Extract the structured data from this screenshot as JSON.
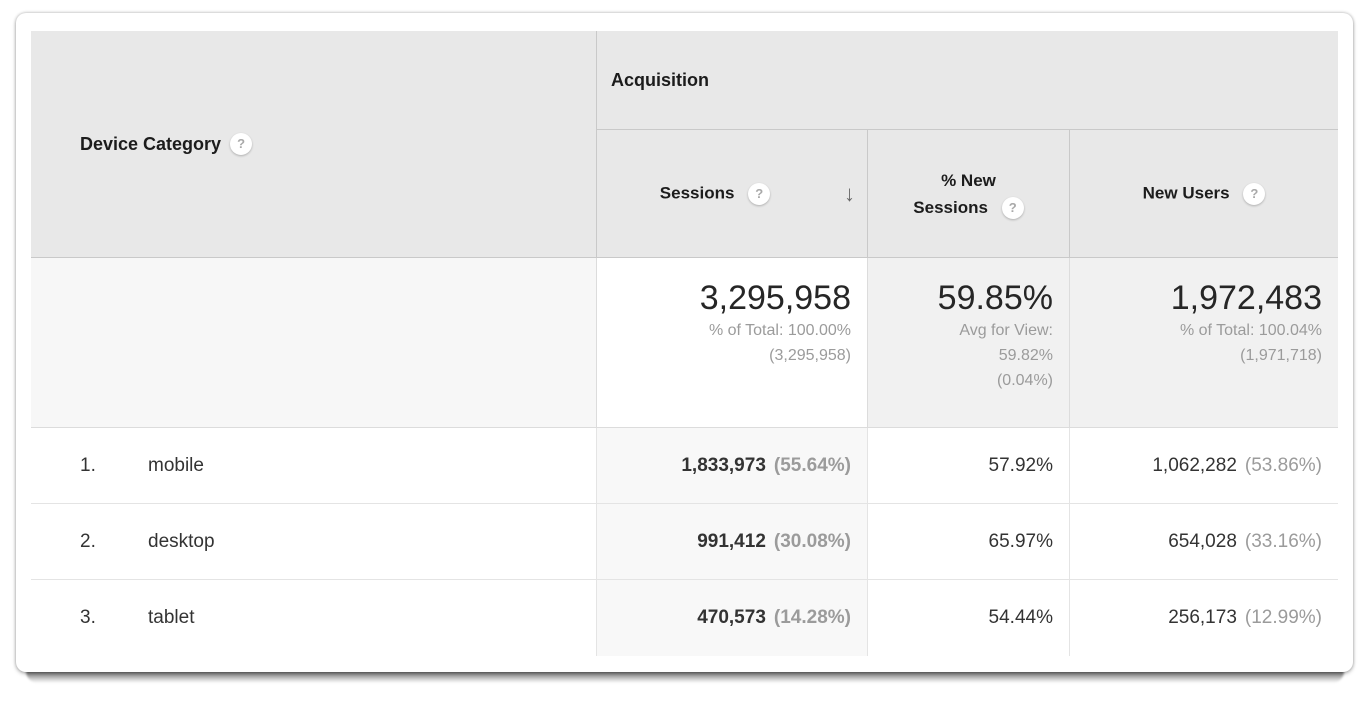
{
  "icons": {
    "help": "?",
    "sort_desc": "↓"
  },
  "sort": {
    "column": "Sessions",
    "direction": "descending"
  },
  "colors": {
    "header_bg": "#e8e8e8",
    "sorted_column_bg": "#f8f8f8",
    "summary_metric_bg": "#f1f1f1",
    "summary_dimension_bg": "#f7f7f7",
    "muted_text": "#9b9b9b",
    "text": "#333333"
  },
  "table": {
    "dimension_header": {
      "label": "Device Category"
    },
    "group_header": {
      "label": "Acquisition"
    },
    "columns": {
      "sessions": {
        "label": "Sessions"
      },
      "new_sessions": {
        "label_line1": "% New",
        "label_line2": "Sessions"
      },
      "new_users": {
        "label": "New Users"
      }
    },
    "summary": {
      "sessions": {
        "value": "3,295,958",
        "sub1": "% of Total: 100.00%",
        "sub2": "(3,295,958)"
      },
      "new_sessions": {
        "value": "59.85%",
        "sub1": "Avg for View:",
        "sub2": "59.82%",
        "sub3": "(0.04%)"
      },
      "new_users": {
        "value": "1,972,483",
        "sub1": "% of Total: 100.04%",
        "sub2": "(1,971,718)"
      }
    },
    "rows": [
      {
        "index": "1.",
        "category": "mobile",
        "sessions": "1,833,973",
        "sessions_pct": "(55.64%)",
        "new_sessions_pct": "57.92%",
        "new_users": "1,062,282",
        "new_users_pct": "(53.86%)"
      },
      {
        "index": "2.",
        "category": "desktop",
        "sessions": "991,412",
        "sessions_pct": "(30.08%)",
        "new_sessions_pct": "65.97%",
        "new_users": "654,028",
        "new_users_pct": "(33.16%)"
      },
      {
        "index": "3.",
        "category": "tablet",
        "sessions": "470,573",
        "sessions_pct": "(14.28%)",
        "new_sessions_pct": "54.44%",
        "new_users": "256,173",
        "new_users_pct": "(12.99%)"
      }
    ]
  }
}
